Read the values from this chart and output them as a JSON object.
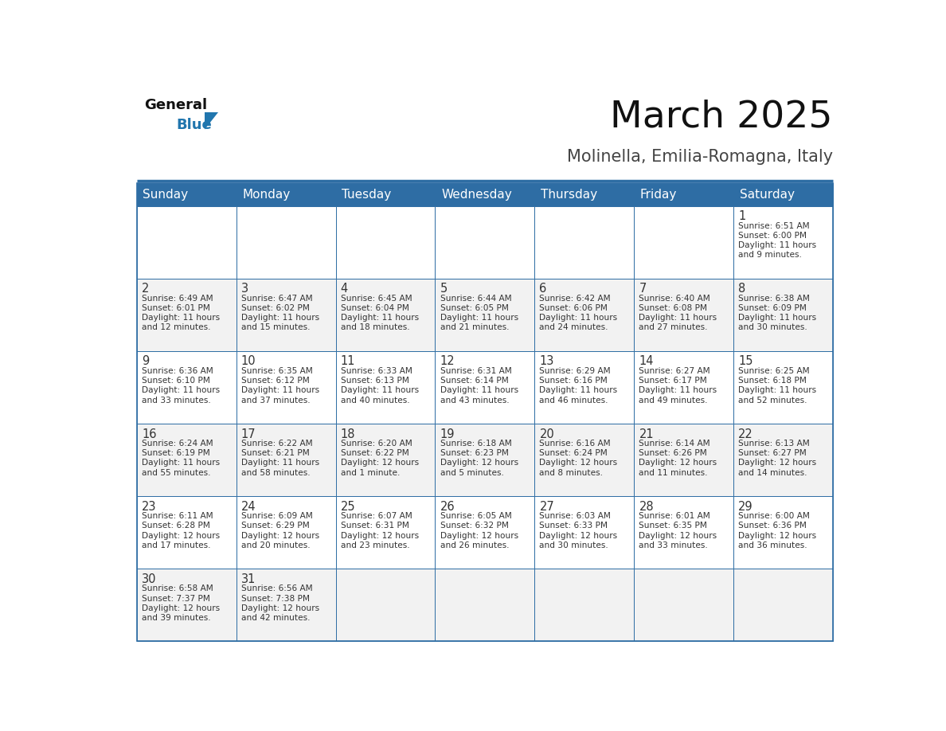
{
  "title": "March 2025",
  "subtitle": "Molinella, Emilia-Romagna, Italy",
  "header_bg": "#2E6DA4",
  "header_text": "#FFFFFF",
  "day_names": [
    "Sunday",
    "Monday",
    "Tuesday",
    "Wednesday",
    "Thursday",
    "Friday",
    "Saturday"
  ],
  "cell_bg_light": "#F2F2F2",
  "cell_bg_white": "#FFFFFF",
  "border_color": "#2E6DA4",
  "text_color": "#333333",
  "title_color": "#111111",
  "subtitle_color": "#444444",
  "logo_general_color": "#111111",
  "logo_blue_color": "#2176AE",
  "days_data": [
    {
      "day": 1,
      "col": 6,
      "row": 0,
      "sunrise": "6:51 AM",
      "sunset": "6:00 PM",
      "daylight": "11 hours",
      "daylight2": "and 9 minutes."
    },
    {
      "day": 2,
      "col": 0,
      "row": 1,
      "sunrise": "6:49 AM",
      "sunset": "6:01 PM",
      "daylight": "11 hours",
      "daylight2": "and 12 minutes."
    },
    {
      "day": 3,
      "col": 1,
      "row": 1,
      "sunrise": "6:47 AM",
      "sunset": "6:02 PM",
      "daylight": "11 hours",
      "daylight2": "and 15 minutes."
    },
    {
      "day": 4,
      "col": 2,
      "row": 1,
      "sunrise": "6:45 AM",
      "sunset": "6:04 PM",
      "daylight": "11 hours",
      "daylight2": "and 18 minutes."
    },
    {
      "day": 5,
      "col": 3,
      "row": 1,
      "sunrise": "6:44 AM",
      "sunset": "6:05 PM",
      "daylight": "11 hours",
      "daylight2": "and 21 minutes."
    },
    {
      "day": 6,
      "col": 4,
      "row": 1,
      "sunrise": "6:42 AM",
      "sunset": "6:06 PM",
      "daylight": "11 hours",
      "daylight2": "and 24 minutes."
    },
    {
      "day": 7,
      "col": 5,
      "row": 1,
      "sunrise": "6:40 AM",
      "sunset": "6:08 PM",
      "daylight": "11 hours",
      "daylight2": "and 27 minutes."
    },
    {
      "day": 8,
      "col": 6,
      "row": 1,
      "sunrise": "6:38 AM",
      "sunset": "6:09 PM",
      "daylight": "11 hours",
      "daylight2": "and 30 minutes."
    },
    {
      "day": 9,
      "col": 0,
      "row": 2,
      "sunrise": "6:36 AM",
      "sunset": "6:10 PM",
      "daylight": "11 hours",
      "daylight2": "and 33 minutes."
    },
    {
      "day": 10,
      "col": 1,
      "row": 2,
      "sunrise": "6:35 AM",
      "sunset": "6:12 PM",
      "daylight": "11 hours",
      "daylight2": "and 37 minutes."
    },
    {
      "day": 11,
      "col": 2,
      "row": 2,
      "sunrise": "6:33 AM",
      "sunset": "6:13 PM",
      "daylight": "11 hours",
      "daylight2": "and 40 minutes."
    },
    {
      "day": 12,
      "col": 3,
      "row": 2,
      "sunrise": "6:31 AM",
      "sunset": "6:14 PM",
      "daylight": "11 hours",
      "daylight2": "and 43 minutes."
    },
    {
      "day": 13,
      "col": 4,
      "row": 2,
      "sunrise": "6:29 AM",
      "sunset": "6:16 PM",
      "daylight": "11 hours",
      "daylight2": "and 46 minutes."
    },
    {
      "day": 14,
      "col": 5,
      "row": 2,
      "sunrise": "6:27 AM",
      "sunset": "6:17 PM",
      "daylight": "11 hours",
      "daylight2": "and 49 minutes."
    },
    {
      "day": 15,
      "col": 6,
      "row": 2,
      "sunrise": "6:25 AM",
      "sunset": "6:18 PM",
      "daylight": "11 hours",
      "daylight2": "and 52 minutes."
    },
    {
      "day": 16,
      "col": 0,
      "row": 3,
      "sunrise": "6:24 AM",
      "sunset": "6:19 PM",
      "daylight": "11 hours",
      "daylight2": "and 55 minutes."
    },
    {
      "day": 17,
      "col": 1,
      "row": 3,
      "sunrise": "6:22 AM",
      "sunset": "6:21 PM",
      "daylight": "11 hours",
      "daylight2": "and 58 minutes."
    },
    {
      "day": 18,
      "col": 2,
      "row": 3,
      "sunrise": "6:20 AM",
      "sunset": "6:22 PM",
      "daylight": "12 hours",
      "daylight2": "and 1 minute."
    },
    {
      "day": 19,
      "col": 3,
      "row": 3,
      "sunrise": "6:18 AM",
      "sunset": "6:23 PM",
      "daylight": "12 hours",
      "daylight2": "and 5 minutes."
    },
    {
      "day": 20,
      "col": 4,
      "row": 3,
      "sunrise": "6:16 AM",
      "sunset": "6:24 PM",
      "daylight": "12 hours",
      "daylight2": "and 8 minutes."
    },
    {
      "day": 21,
      "col": 5,
      "row": 3,
      "sunrise": "6:14 AM",
      "sunset": "6:26 PM",
      "daylight": "12 hours",
      "daylight2": "and 11 minutes."
    },
    {
      "day": 22,
      "col": 6,
      "row": 3,
      "sunrise": "6:13 AM",
      "sunset": "6:27 PM",
      "daylight": "12 hours",
      "daylight2": "and 14 minutes."
    },
    {
      "day": 23,
      "col": 0,
      "row": 4,
      "sunrise": "6:11 AM",
      "sunset": "6:28 PM",
      "daylight": "12 hours",
      "daylight2": "and 17 minutes."
    },
    {
      "day": 24,
      "col": 1,
      "row": 4,
      "sunrise": "6:09 AM",
      "sunset": "6:29 PM",
      "daylight": "12 hours",
      "daylight2": "and 20 minutes."
    },
    {
      "day": 25,
      "col": 2,
      "row": 4,
      "sunrise": "6:07 AM",
      "sunset": "6:31 PM",
      "daylight": "12 hours",
      "daylight2": "and 23 minutes."
    },
    {
      "day": 26,
      "col": 3,
      "row": 4,
      "sunrise": "6:05 AM",
      "sunset": "6:32 PM",
      "daylight": "12 hours",
      "daylight2": "and 26 minutes."
    },
    {
      "day": 27,
      "col": 4,
      "row": 4,
      "sunrise": "6:03 AM",
      "sunset": "6:33 PM",
      "daylight": "12 hours",
      "daylight2": "and 30 minutes."
    },
    {
      "day": 28,
      "col": 5,
      "row": 4,
      "sunrise": "6:01 AM",
      "sunset": "6:35 PM",
      "daylight": "12 hours",
      "daylight2": "and 33 minutes."
    },
    {
      "day": 29,
      "col": 6,
      "row": 4,
      "sunrise": "6:00 AM",
      "sunset": "6:36 PM",
      "daylight": "12 hours",
      "daylight2": "and 36 minutes."
    },
    {
      "day": 30,
      "col": 0,
      "row": 5,
      "sunrise": "6:58 AM",
      "sunset": "7:37 PM",
      "daylight": "12 hours",
      "daylight2": "and 39 minutes."
    },
    {
      "day": 31,
      "col": 1,
      "row": 5,
      "sunrise": "6:56 AM",
      "sunset": "7:38 PM",
      "daylight": "12 hours",
      "daylight2": "and 42 minutes."
    }
  ],
  "num_rows": 6,
  "num_cols": 7
}
